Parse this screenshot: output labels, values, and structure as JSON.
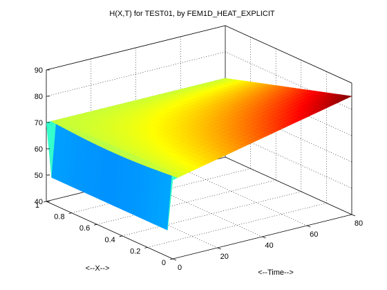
{
  "chart_data": {
    "type": "surface",
    "title": "H(X,T) for TEST01, by FEM1D_HEAT_EXPLICIT",
    "xlabel": "<--X-->",
    "tlabel": "<--Time-->",
    "zlabel": "",
    "x_range": [
      0,
      1
    ],
    "t_range": [
      0,
      80
    ],
    "z_range": [
      40,
      90
    ],
    "x_ticks": [
      "0",
      "0.2",
      "0.4",
      "0.6",
      "0.8",
      "1"
    ],
    "t_ticks": [
      "0",
      "20",
      "40",
      "60",
      "80"
    ],
    "z_ticks": [
      "40",
      "50",
      "60",
      "70",
      "80",
      "90"
    ],
    "grid": true,
    "colormap": "jet",
    "boundary_conditions": {
      "h_at_x0": "rises from 70 at t=0 to 85 at t=80",
      "h_at_x1": 70,
      "initial_interior": 50
    },
    "samples": {
      "t": [
        0,
        10,
        20,
        30,
        40,
        50,
        60,
        70,
        80
      ],
      "h_at_x0": [
        70,
        71.9,
        73.8,
        75.6,
        77.5,
        79.4,
        81.3,
        83.1,
        85
      ],
      "h_at_x0_5": [
        50,
        60.4,
        62.1,
        63.4,
        64.6,
        65.7,
        66.6,
        67.5,
        68.4
      ],
      "h_at_x1": [
        70,
        70,
        70,
        70,
        70,
        70,
        70,
        70,
        70
      ]
    }
  }
}
